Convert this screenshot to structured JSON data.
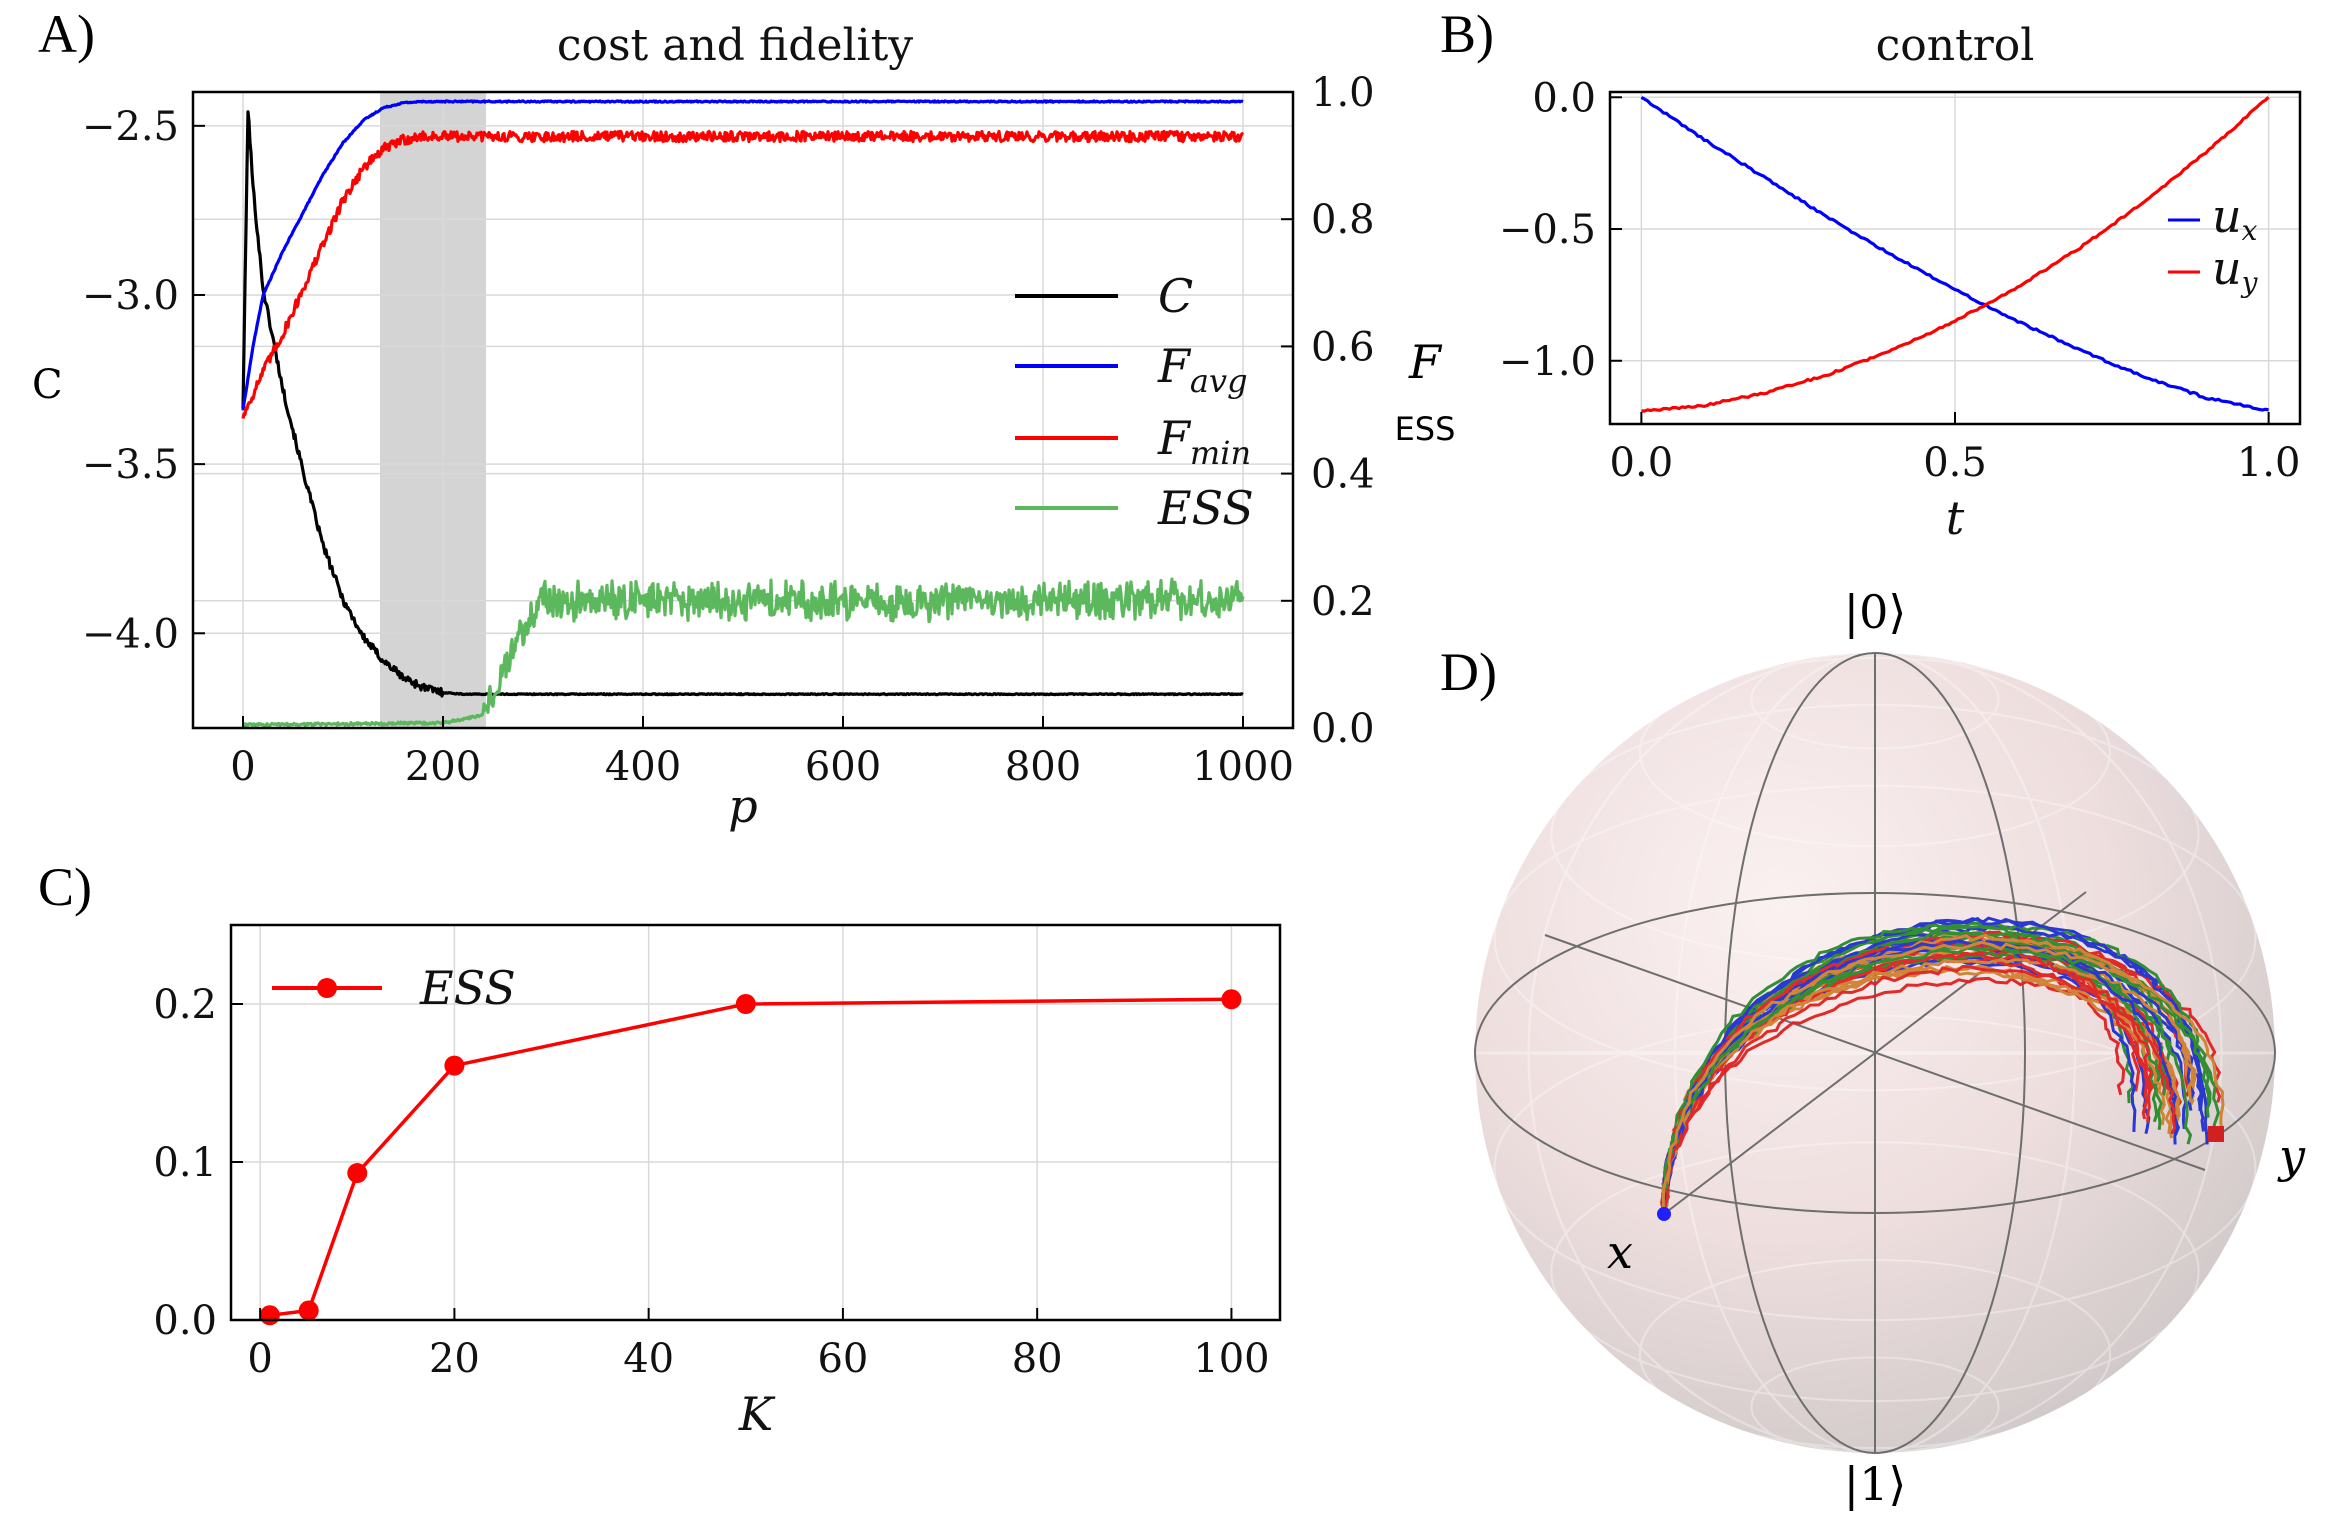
{
  "figure": {
    "panel_labels": [
      "A)",
      "B)",
      "C)",
      "D)"
    ]
  },
  "chart_data": [
    {
      "id": "A",
      "type": "line",
      "title": "cost and fidelity",
      "xlabel": "p",
      "ylabel": "C",
      "ylabel_right": "F",
      "ylabel_right2": "ESS",
      "xlim": [
        -50,
        1050
      ],
      "ylim_left": [
        -4.28,
        -2.4
      ],
      "ylim_right": [
        0.0,
        1.0
      ],
      "xticks": [
        0,
        200,
        400,
        600,
        800,
        1000
      ],
      "yticks_left": [
        -2.5,
        -3.0,
        -3.5,
        -4.0
      ],
      "yticks_left_labels": [
        "−2.5",
        "−3.0",
        "−3.5",
        "−4.0"
      ],
      "yticks_right": [
        1.0,
        0.8,
        0.6,
        0.4,
        0.2,
        0.0
      ],
      "yticks_right_labels": [
        "1.0",
        "0.8",
        "0.6",
        "0.4",
        "0.2",
        "0.0"
      ],
      "shaded_x_range": [
        137,
        243
      ],
      "legend_position": "center-right",
      "series": [
        {
          "name": "C",
          "axis": "left",
          "color": "#000000",
          "x": [
            0,
            5,
            10,
            20,
            40,
            60,
            80,
            100,
            120,
            140,
            160,
            180,
            200,
            220,
            240,
            1000
          ],
          "values": [
            -3.33,
            -2.45,
            -2.68,
            -2.98,
            -3.28,
            -3.52,
            -3.74,
            -3.9,
            -4.01,
            -4.08,
            -4.13,
            -4.16,
            -4.175,
            -4.18,
            -4.18,
            -4.18
          ]
        },
        {
          "name": "F_avg",
          "axis": "right",
          "color": "#0000ff",
          "x": [
            0,
            10,
            20,
            40,
            60,
            80,
            100,
            120,
            140,
            160,
            180,
            200,
            1000
          ],
          "values": [
            0.5,
            0.6,
            0.68,
            0.75,
            0.81,
            0.87,
            0.92,
            0.955,
            0.975,
            0.983,
            0.985,
            0.985,
            0.985
          ]
        },
        {
          "name": "F_min",
          "axis": "right",
          "color": "#ff0000",
          "x": [
            0,
            20,
            40,
            60,
            80,
            100,
            120,
            140,
            160,
            180,
            200,
            1000
          ],
          "values": [
            0.49,
            0.56,
            0.62,
            0.69,
            0.76,
            0.83,
            0.88,
            0.91,
            0.925,
            0.93,
            0.93,
            0.93
          ]
        },
        {
          "name": "ESS",
          "axis": "right",
          "color": "#5cb85c",
          "x": [
            0,
            200,
            240,
            260,
            280,
            300,
            1000
          ],
          "values": [
            0.005,
            0.008,
            0.02,
            0.09,
            0.15,
            0.2,
            0.2
          ]
        }
      ],
      "legend": [
        "C",
        "F_avg",
        "F_min",
        "ESS"
      ]
    },
    {
      "id": "B",
      "type": "line",
      "title": "control",
      "xlabel": "t",
      "xlim": [
        -0.05,
        1.05
      ],
      "ylim": [
        -1.24,
        0.02
      ],
      "xticks": [
        0.0,
        0.5,
        1.0
      ],
      "xticks_labels": [
        "0.0",
        "0.5",
        "1.0"
      ],
      "yticks": [
        0.0,
        -0.5,
        -1.0
      ],
      "yticks_labels": [
        "0.0",
        "−0.5",
        "−1.0"
      ],
      "legend_position": "right",
      "series": [
        {
          "name": "u_x",
          "color": "#0000ff",
          "x": [
            0,
            0.1,
            0.2,
            0.3,
            0.4,
            0.5,
            0.6,
            0.7,
            0.8,
            0.9,
            1.0
          ],
          "values": [
            0.0,
            -0.16,
            -0.31,
            -0.46,
            -0.6,
            -0.73,
            -0.85,
            -0.96,
            -1.06,
            -1.14,
            -1.19
          ]
        },
        {
          "name": "u_y",
          "color": "#ff0000",
          "x": [
            0,
            0.1,
            0.2,
            0.3,
            0.4,
            0.5,
            0.6,
            0.7,
            0.8,
            0.9,
            1.0
          ],
          "values": [
            -1.19,
            -1.17,
            -1.12,
            -1.05,
            -0.96,
            -0.85,
            -0.72,
            -0.57,
            -0.4,
            -0.21,
            0.0
          ]
        }
      ],
      "legend": [
        "u_x",
        "u_y"
      ]
    },
    {
      "id": "C",
      "type": "line",
      "xlabel": "K",
      "xlim": [
        -3,
        105
      ],
      "ylim": [
        0.0,
        0.25
      ],
      "xticks": [
        0,
        20,
        40,
        60,
        80,
        100
      ],
      "yticks": [
        0.0,
        0.1,
        0.2
      ],
      "yticks_labels": [
        "0.0",
        "0.1",
        "0.2"
      ],
      "legend_position": "top-left",
      "series": [
        {
          "name": "ESS",
          "color": "#ff0000",
          "x": [
            1,
            5,
            10,
            20,
            50,
            100
          ],
          "values": [
            0.003,
            0.006,
            0.093,
            0.161,
            0.2,
            0.203
          ]
        }
      ],
      "legend": [
        "ESS"
      ]
    },
    {
      "id": "D",
      "type": "bloch-sphere",
      "labels": {
        "north": "|0⟩",
        "south": "|1⟩",
        "x": "x",
        "y": "y"
      },
      "start_marker_color": "#2020ff",
      "end_marker_color": "#d02020",
      "trajectory_colors": [
        "#2030d0",
        "#e02020",
        "#2a8a2a",
        "#d08030"
      ],
      "trajectory_count": 40
    }
  ]
}
